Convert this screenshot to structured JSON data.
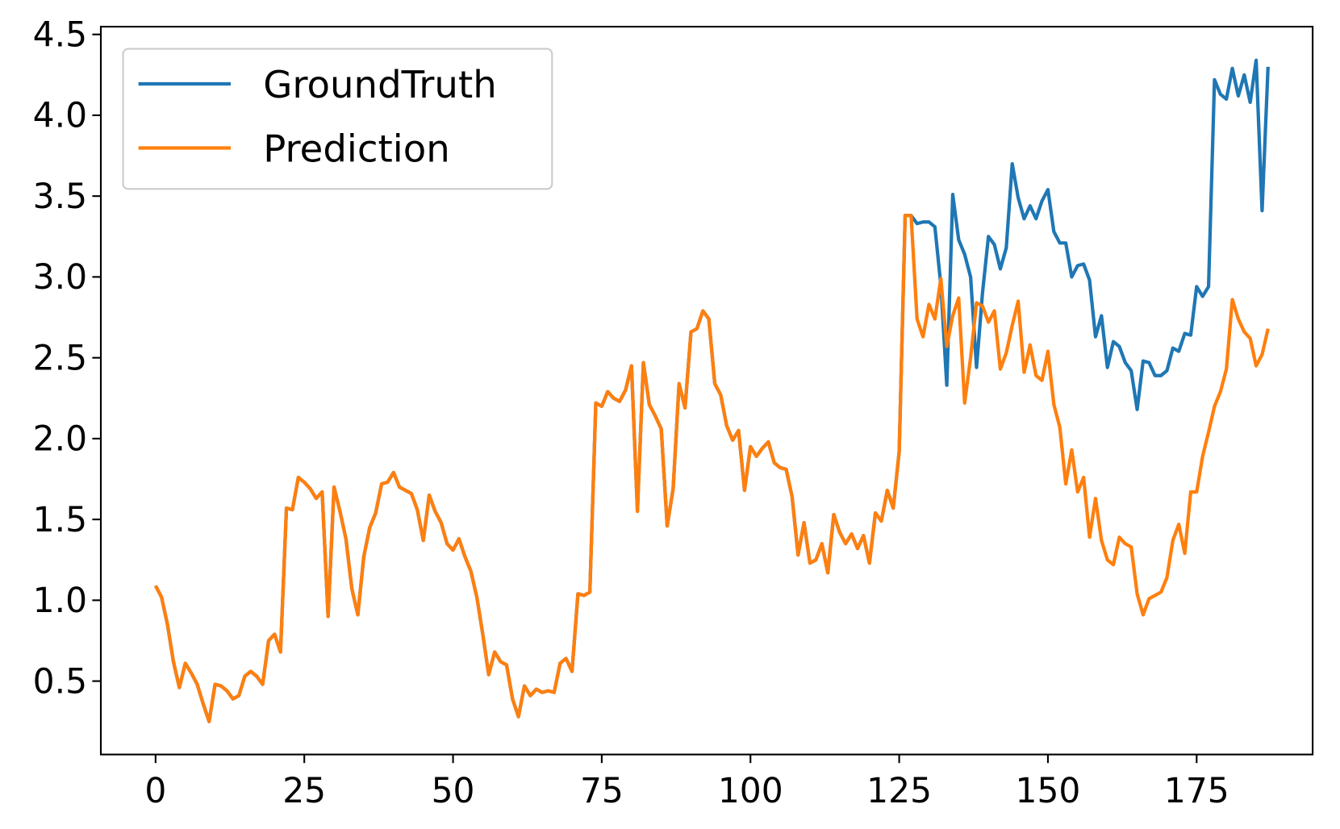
{
  "chart_data": {
    "type": "line",
    "x": [
      0,
      1,
      2,
      3,
      4,
      5,
      6,
      7,
      8,
      9,
      10,
      11,
      12,
      13,
      14,
      15,
      16,
      17,
      18,
      19,
      20,
      21,
      22,
      23,
      24,
      25,
      26,
      27,
      28,
      29,
      30,
      31,
      32,
      33,
      34,
      35,
      36,
      37,
      38,
      39,
      40,
      41,
      42,
      43,
      44,
      45,
      46,
      47,
      48,
      49,
      50,
      51,
      52,
      53,
      54,
      55,
      56,
      57,
      58,
      59,
      60,
      61,
      62,
      63,
      64,
      65,
      66,
      67,
      68,
      69,
      70,
      71,
      72,
      73,
      74,
      75,
      76,
      77,
      78,
      79,
      80,
      81,
      82,
      83,
      84,
      85,
      86,
      87,
      88,
      89,
      90,
      91,
      92,
      93,
      94,
      95,
      96,
      97,
      98,
      99,
      100,
      101,
      102,
      103,
      104,
      105,
      106,
      107,
      108,
      109,
      110,
      111,
      112,
      113,
      114,
      115,
      116,
      117,
      118,
      119,
      120,
      121,
      122,
      123,
      124,
      125,
      126,
      127,
      128,
      129,
      130,
      131,
      132,
      133,
      134,
      135,
      136,
      137,
      138,
      139,
      140,
      141,
      142,
      143,
      144,
      145,
      146,
      147,
      148,
      149,
      150,
      151,
      152,
      153,
      154,
      155,
      156,
      157,
      158,
      159,
      160,
      161,
      162,
      163,
      164,
      165,
      166,
      167,
      168,
      169,
      170,
      171,
      172,
      173,
      174,
      175,
      176,
      177,
      178,
      179,
      180,
      181,
      182,
      183,
      184,
      185,
      186,
      187
    ],
    "series": [
      {
        "name": "GroundTruth",
        "color": "#1f77b4",
        "values": [
          1.09,
          1.02,
          0.85,
          0.62,
          0.46,
          0.61,
          0.55,
          0.48,
          0.36,
          0.25,
          0.48,
          0.47,
          0.44,
          0.39,
          0.41,
          0.53,
          0.56,
          0.53,
          0.48,
          0.75,
          0.79,
          0.68,
          1.57,
          1.56,
          1.76,
          1.73,
          1.69,
          1.63,
          1.67,
          0.9,
          1.7,
          1.55,
          1.38,
          1.07,
          0.91,
          1.27,
          1.45,
          1.54,
          1.72,
          1.73,
          1.79,
          1.7,
          1.68,
          1.66,
          1.56,
          1.37,
          1.65,
          1.55,
          1.48,
          1.35,
          1.31,
          1.38,
          1.27,
          1.18,
          1.02,
          0.79,
          0.54,
          0.68,
          0.62,
          0.6,
          0.39,
          0.28,
          0.47,
          0.41,
          0.45,
          0.43,
          0.44,
          0.43,
          0.61,
          0.64,
          0.56,
          1.04,
          1.03,
          1.05,
          2.22,
          2.2,
          2.29,
          2.25,
          2.23,
          2.3,
          2.45,
          1.55,
          2.47,
          2.21,
          2.14,
          2.06,
          1.46,
          1.69,
          2.34,
          2.19,
          2.66,
          2.68,
          2.79,
          2.74,
          2.34,
          2.27,
          2.08,
          1.99,
          2.05,
          1.68,
          1.95,
          1.89,
          1.94,
          1.98,
          1.85,
          1.82,
          1.81,
          1.64,
          1.28,
          1.48,
          1.23,
          1.25,
          1.35,
          1.17,
          1.53,
          1.42,
          1.35,
          1.41,
          1.32,
          1.4,
          1.23,
          1.54,
          1.49,
          1.68,
          1.57,
          1.92,
          3.38,
          3.38,
          3.33,
          3.34,
          3.34,
          3.31,
          2.95,
          2.33,
          3.51,
          3.23,
          3.14,
          3.0,
          2.44,
          2.9,
          3.25,
          3.2,
          3.05,
          3.18,
          3.7,
          3.49,
          3.36,
          3.44,
          3.36,
          3.47,
          3.54,
          3.28,
          3.21,
          3.21,
          3.0,
          3.07,
          3.08,
          2.98,
          2.63,
          2.76,
          2.44,
          2.6,
          2.57,
          2.47,
          2.42,
          2.18,
          2.48,
          2.47,
          2.39,
          2.39,
          2.42,
          2.56,
          2.54,
          2.65,
          2.64,
          2.94,
          2.88,
          2.94,
          4.22,
          4.13,
          4.1,
          4.29,
          4.12,
          4.25,
          4.08,
          4.34,
          3.41,
          4.3
        ]
      },
      {
        "name": "Prediction",
        "color": "#ff7f0e",
        "values": [
          1.09,
          1.02,
          0.85,
          0.62,
          0.46,
          0.61,
          0.55,
          0.48,
          0.36,
          0.25,
          0.48,
          0.47,
          0.44,
          0.39,
          0.41,
          0.53,
          0.56,
          0.53,
          0.48,
          0.75,
          0.79,
          0.68,
          1.57,
          1.56,
          1.76,
          1.73,
          1.69,
          1.63,
          1.67,
          0.9,
          1.7,
          1.55,
          1.38,
          1.07,
          0.91,
          1.27,
          1.45,
          1.54,
          1.72,
          1.73,
          1.79,
          1.7,
          1.68,
          1.66,
          1.56,
          1.37,
          1.65,
          1.55,
          1.48,
          1.35,
          1.31,
          1.38,
          1.27,
          1.18,
          1.02,
          0.79,
          0.54,
          0.68,
          0.62,
          0.6,
          0.39,
          0.28,
          0.47,
          0.41,
          0.45,
          0.43,
          0.44,
          0.43,
          0.61,
          0.64,
          0.56,
          1.04,
          1.03,
          1.05,
          2.22,
          2.2,
          2.29,
          2.25,
          2.23,
          2.3,
          2.45,
          1.55,
          2.47,
          2.21,
          2.14,
          2.06,
          1.46,
          1.69,
          2.34,
          2.19,
          2.66,
          2.68,
          2.79,
          2.74,
          2.34,
          2.27,
          2.08,
          1.99,
          2.05,
          1.68,
          1.95,
          1.89,
          1.94,
          1.98,
          1.85,
          1.82,
          1.81,
          1.64,
          1.28,
          1.48,
          1.23,
          1.25,
          1.35,
          1.17,
          1.53,
          1.42,
          1.35,
          1.41,
          1.32,
          1.4,
          1.23,
          1.54,
          1.49,
          1.68,
          1.57,
          1.92,
          3.38,
          3.38,
          2.74,
          2.63,
          2.83,
          2.74,
          2.99,
          2.57,
          2.76,
          2.87,
          2.22,
          2.5,
          2.84,
          2.82,
          2.72,
          2.79,
          2.43,
          2.53,
          2.7,
          2.85,
          2.41,
          2.58,
          2.39,
          2.36,
          2.54,
          2.21,
          2.07,
          1.72,
          1.93,
          1.67,
          1.76,
          1.39,
          1.63,
          1.37,
          1.25,
          1.22,
          1.39,
          1.35,
          1.33,
          1.04,
          0.91,
          1.01,
          1.03,
          1.05,
          1.14,
          1.37,
          1.47,
          1.29,
          1.67,
          1.67,
          1.89,
          2.04,
          2.2,
          2.29,
          2.43,
          2.86,
          2.74,
          2.66,
          2.62,
          2.45,
          2.52,
          2.68
        ]
      }
    ],
    "xlim": [
      -9.2,
      194.5
    ],
    "ylim": [
      0.046,
      4.548
    ],
    "xticks": [
      0,
      25,
      50,
      75,
      100,
      125,
      150,
      175
    ],
    "yticks": [
      0.5,
      {
        "value": 1,
        "label": "1.0"
      },
      1.5,
      {
        "value": 2,
        "label": "2.0"
      },
      2.5,
      {
        "value": 3,
        "label": "3.0"
      },
      3.5,
      {
        "value": 4,
        "label": "4.0"
      },
      4.5
    ],
    "grid": false,
    "legend": "upper left"
  }
}
